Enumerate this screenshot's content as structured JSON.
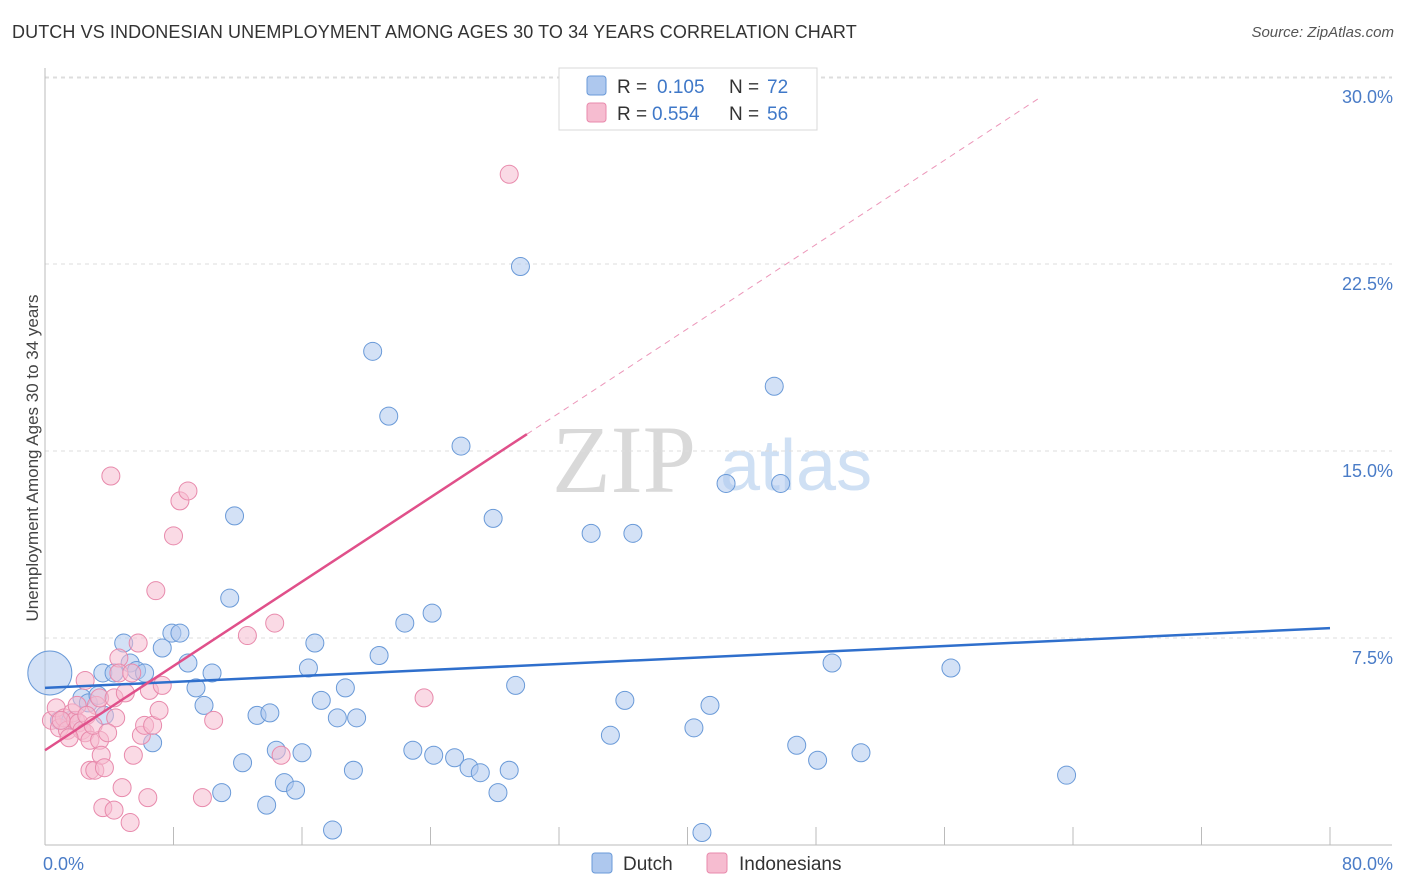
{
  "title": "DUTCH VS INDONESIAN UNEMPLOYMENT AMONG AGES 30 TO 34 YEARS CORRELATION CHART",
  "source": "Source: ZipAtlas.com",
  "watermark": {
    "zip": "ZIP",
    "atlas": "atlas"
  },
  "colors": {
    "dutch_fill": "#aec8ee",
    "dutch_stroke": "#6a9ad8",
    "dutch_line": "#2f6fcc",
    "indo_fill": "#f6bcd0",
    "indo_stroke": "#e88aac",
    "indo_line": "#e0508a",
    "grid": "#dddddd",
    "tick_label": "#4a7cc7"
  },
  "legend": {
    "rows": [
      {
        "r_label": "R =",
        "r_value": "0.105",
        "n_label": "N =",
        "n_value": "72"
      },
      {
        "r_label": "R =",
        "r_value": "0.554",
        "n_label": "N =",
        "n_value": "56"
      }
    ]
  },
  "chart_data": {
    "type": "scatter",
    "title": "DUTCH VS INDONESIAN UNEMPLOYMENT AMONG AGES 30 TO 34 YEARS CORRELATION CHART",
    "xlabel": "",
    "ylabel": "Unemployment Among Ages 30 to 34 years",
    "xlim": [
      0,
      80
    ],
    "ylim": [
      0,
      30
    ],
    "x_tick_labels": [
      {
        "value": 0,
        "label": "0.0%"
      },
      {
        "value": 80,
        "label": "80.0%"
      }
    ],
    "y_tick_labels": [
      {
        "value": 7.5,
        "label": "7.5%"
      },
      {
        "value": 15,
        "label": "15.0%"
      },
      {
        "value": 22.5,
        "label": "22.5%"
      },
      {
        "value": 30,
        "label": "30.0%"
      }
    ],
    "series": [
      {
        "name": "Dutch",
        "trend": {
          "x0": 0,
          "y0": 6.3,
          "x1": 80,
          "y1": 8.7,
          "solid_until": 80
        },
        "points": [
          [
            0.3,
            6.9,
            22
          ],
          [
            0.9,
            5.0,
            10
          ],
          [
            1.6,
            5.0,
            10
          ],
          [
            2.3,
            5.9,
            10
          ],
          [
            2.7,
            5.7,
            10
          ],
          [
            3.3,
            6.0,
            10
          ],
          [
            3.7,
            5.2,
            10
          ],
          [
            3.6,
            6.9,
            10
          ],
          [
            4.3,
            6.9,
            10
          ],
          [
            4.9,
            8.1,
            10
          ],
          [
            5.3,
            7.3,
            10
          ],
          [
            5.7,
            7.0,
            10
          ],
          [
            6.2,
            6.9,
            10
          ],
          [
            6.7,
            4.1,
            10
          ],
          [
            7.3,
            7.9,
            10
          ],
          [
            7.9,
            8.5,
            10
          ],
          [
            8.4,
            8.5,
            10
          ],
          [
            8.9,
            7.3,
            10
          ],
          [
            9.4,
            6.3,
            10
          ],
          [
            9.9,
            5.6,
            10
          ],
          [
            10.4,
            6.9,
            10
          ],
          [
            11.0,
            2.1,
            10
          ],
          [
            11.5,
            9.9,
            10
          ],
          [
            11.8,
            13.2,
            10
          ],
          [
            12.3,
            3.3,
            10
          ],
          [
            13.2,
            5.2,
            10
          ],
          [
            13.8,
            1.6,
            10
          ],
          [
            14.0,
            5.3,
            10
          ],
          [
            14.4,
            3.8,
            10
          ],
          [
            14.9,
            2.5,
            10
          ],
          [
            15.6,
            2.2,
            10
          ],
          [
            16.0,
            3.7,
            10
          ],
          [
            16.4,
            7.1,
            10
          ],
          [
            16.8,
            8.1,
            10
          ],
          [
            17.2,
            5.8,
            10
          ],
          [
            17.9,
            0.6,
            10
          ],
          [
            18.2,
            5.1,
            10
          ],
          [
            18.7,
            6.3,
            10
          ],
          [
            19.4,
            5.1,
            10
          ],
          [
            19.2,
            3.0,
            10
          ],
          [
            20.4,
            19.8,
            10
          ],
          [
            20.8,
            7.6,
            10
          ],
          [
            21.4,
            17.2,
            10
          ],
          [
            22.4,
            8.9,
            10
          ],
          [
            22.9,
            3.8,
            10
          ],
          [
            24.1,
            9.3,
            10
          ],
          [
            24.2,
            3.6,
            10
          ],
          [
            25.5,
            3.5,
            10
          ],
          [
            25.9,
            16.0,
            10
          ],
          [
            26.4,
            3.1,
            10
          ],
          [
            27.1,
            2.9,
            10
          ],
          [
            27.9,
            13.1,
            10
          ],
          [
            28.2,
            2.1,
            10
          ],
          [
            28.9,
            3.0,
            10
          ],
          [
            29.3,
            6.4,
            10
          ],
          [
            29.6,
            23.2,
            10
          ],
          [
            34.0,
            12.5,
            10
          ],
          [
            35.2,
            4.4,
            10
          ],
          [
            36.1,
            5.8,
            10
          ],
          [
            36.6,
            12.5,
            10
          ],
          [
            40.4,
            4.7,
            10
          ],
          [
            40.9,
            0.5,
            10
          ],
          [
            41.4,
            5.6,
            10
          ],
          [
            42.4,
            14.5,
            10
          ],
          [
            45.4,
            18.4,
            10
          ],
          [
            45.8,
            14.5,
            10
          ],
          [
            46.8,
            4.0,
            10
          ],
          [
            48.1,
            3.4,
            10
          ],
          [
            49.0,
            7.3,
            10
          ],
          [
            50.8,
            3.7,
            10
          ],
          [
            56.4,
            7.1,
            10
          ],
          [
            63.6,
            2.8,
            10
          ]
        ]
      },
      {
        "name": "Indonesians",
        "trend": {
          "x0": 0,
          "y0": 3.8,
          "x1": 62,
          "y1": 30.0,
          "solid_until": 30
        },
        "points": [
          [
            0.4,
            5.0,
            12
          ],
          [
            0.7,
            5.5,
            12
          ],
          [
            0.9,
            4.7,
            10
          ],
          [
            1.2,
            5.1,
            10
          ],
          [
            1.4,
            4.6,
            10
          ],
          [
            1.7,
            5.3,
            10
          ],
          [
            1.9,
            5.0,
            10
          ],
          [
            2.1,
            4.9,
            10
          ],
          [
            2.3,
            4.6,
            10
          ],
          [
            2.5,
            4.5,
            10
          ],
          [
            2.5,
            6.6,
            10
          ],
          [
            2.8,
            4.2,
            10
          ],
          [
            2.8,
            3.0,
            10
          ],
          [
            3.1,
            3.0,
            10
          ],
          [
            3.2,
            5.6,
            10
          ],
          [
            3.4,
            4.2,
            10
          ],
          [
            3.4,
            5.9,
            10
          ],
          [
            3.5,
            3.6,
            10
          ],
          [
            3.6,
            1.5,
            10
          ],
          [
            3.7,
            3.1,
            10
          ],
          [
            4.1,
            14.8,
            10
          ],
          [
            4.3,
            1.4,
            10
          ],
          [
            4.3,
            5.9,
            10
          ],
          [
            4.4,
            5.1,
            10
          ],
          [
            4.6,
            7.5,
            10
          ],
          [
            4.6,
            6.9,
            10
          ],
          [
            4.8,
            2.3,
            10
          ],
          [
            5.0,
            6.1,
            10
          ],
          [
            5.3,
            0.9,
            10
          ],
          [
            5.4,
            6.9,
            10
          ],
          [
            5.5,
            3.6,
            10
          ],
          [
            5.8,
            8.1,
            10
          ],
          [
            6.0,
            4.4,
            10
          ],
          [
            6.2,
            4.8,
            10
          ],
          [
            6.4,
            1.9,
            10
          ],
          [
            6.5,
            6.2,
            10
          ],
          [
            6.7,
            4.8,
            10
          ],
          [
            6.9,
            10.2,
            10
          ],
          [
            7.1,
            5.4,
            10
          ],
          [
            7.3,
            6.4,
            10
          ],
          [
            8.0,
            12.4,
            10
          ],
          [
            8.4,
            13.8,
            10
          ],
          [
            8.9,
            14.2,
            10
          ],
          [
            9.8,
            1.9,
            10
          ],
          [
            10.5,
            5.0,
            10
          ],
          [
            12.6,
            8.4,
            10
          ],
          [
            14.7,
            3.6,
            10
          ],
          [
            14.3,
            8.9,
            10
          ],
          [
            23.6,
            5.9,
            10
          ],
          [
            28.9,
            26.9,
            10
          ],
          [
            1.0,
            5.0,
            10
          ],
          [
            1.5,
            4.3,
            10
          ],
          [
            2.0,
            5.6,
            10
          ],
          [
            2.6,
            5.2,
            10
          ],
          [
            3.0,
            4.8,
            10
          ],
          [
            3.9,
            4.5,
            10
          ]
        ]
      }
    ],
    "legend_entries": [
      "Dutch",
      "Indonesians"
    ],
    "legend_placement": "top-center",
    "grid": true
  }
}
